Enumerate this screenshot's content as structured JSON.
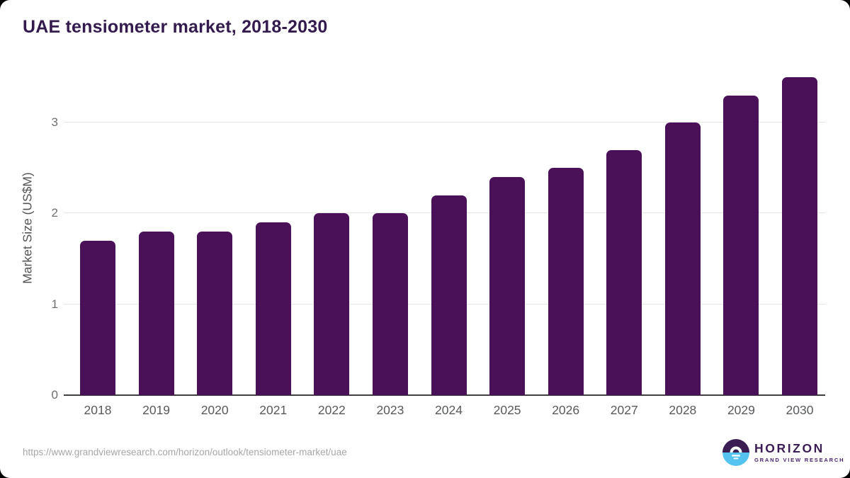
{
  "page": {
    "title": "UAE tensiometer market, 2018-2030"
  },
  "chart_data": {
    "type": "bar",
    "title": "UAE tensiometer market, 2018-2030",
    "categories": [
      "2018",
      "2019",
      "2020",
      "2021",
      "2022",
      "2023",
      "2024",
      "2025",
      "2026",
      "2027",
      "2028",
      "2029",
      "2030"
    ],
    "values": [
      1.7,
      1.8,
      1.8,
      1.9,
      2.0,
      2.0,
      2.2,
      2.4,
      2.5,
      2.7,
      3.0,
      3.3,
      3.5
    ],
    "xlabel": "",
    "ylabel": "Market Size (US$M)",
    "yticks": [
      0,
      1,
      2,
      3
    ],
    "ylim": [
      0,
      3.5
    ],
    "legend": false,
    "grid": "horizontal-only",
    "bar_color": "#4a1158"
  },
  "footer": {
    "source_url": "https://www.grandviewresearch.com/horizon/outlook/tensiometer-market/uae",
    "logo": {
      "brand": "HORIZON",
      "sub_brand": "GRAND VIEW RESEARCH"
    }
  },
  "colors": {
    "bar": "#4a1158",
    "title_text": "#331b4e",
    "axis_text": "#58595b",
    "tick_text": "#6e6e6e",
    "gridline": "#e6e6e6",
    "axis_line": "#404040",
    "url_text": "#a6a6a6",
    "logo_purple": "#3a1d52",
    "logo_subtext": "#4b2472",
    "logo_blue": "#55c3ef"
  }
}
